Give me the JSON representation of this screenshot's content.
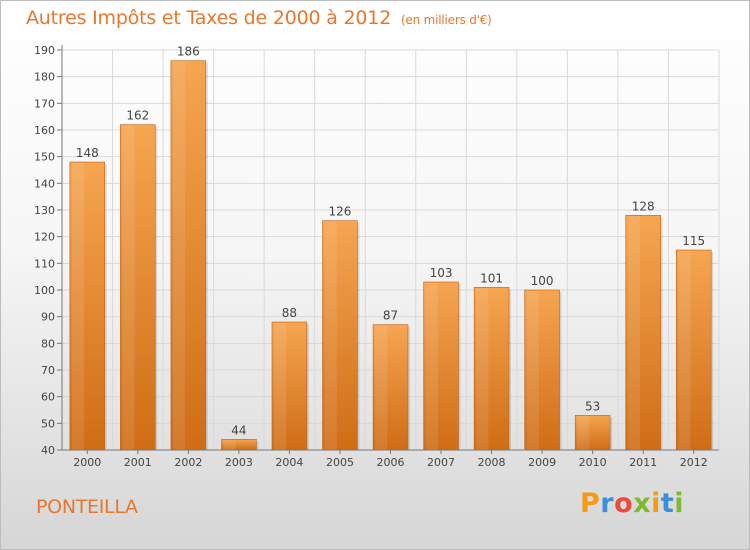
{
  "header": {
    "title": "Autres Impôts et Taxes de 2000 à 2012",
    "subtitle": "(en milliers d'€)"
  },
  "footer": {
    "place": "PONTEILLA",
    "logo": {
      "letters": [
        "P",
        "r",
        "o",
        "x",
        "i",
        "t",
        "i"
      ],
      "colors": [
        "#f39c12",
        "#3a8fd9",
        "#e84c3d",
        "#7dbb2e",
        "#f39c12",
        "#3a8fd9",
        "#7dbb2e"
      ]
    }
  },
  "chart_data": {
    "type": "bar",
    "title": "Autres Impôts et Taxes de 2000 à 2012",
    "subtitle": "(en milliers d'€)",
    "categories": [
      "2000",
      "2001",
      "2002",
      "2003",
      "2004",
      "2005",
      "2006",
      "2007",
      "2008",
      "2009",
      "2010",
      "2011",
      "2012"
    ],
    "values": [
      148,
      162,
      186,
      44,
      88,
      126,
      87,
      103,
      101,
      100,
      53,
      128,
      115
    ],
    "xlabel": "",
    "ylabel": "",
    "ylim": [
      40,
      190
    ],
    "yticks": [
      40,
      50,
      60,
      70,
      80,
      90,
      100,
      110,
      120,
      130,
      140,
      150,
      160,
      170,
      180,
      190
    ],
    "grid": true,
    "legend": "none",
    "colors": {
      "bar_top": "#f6a551",
      "bar_bottom": "#cf6d16",
      "grid": "#d9d9d9",
      "axis": "#777777",
      "label": "#444444"
    }
  }
}
